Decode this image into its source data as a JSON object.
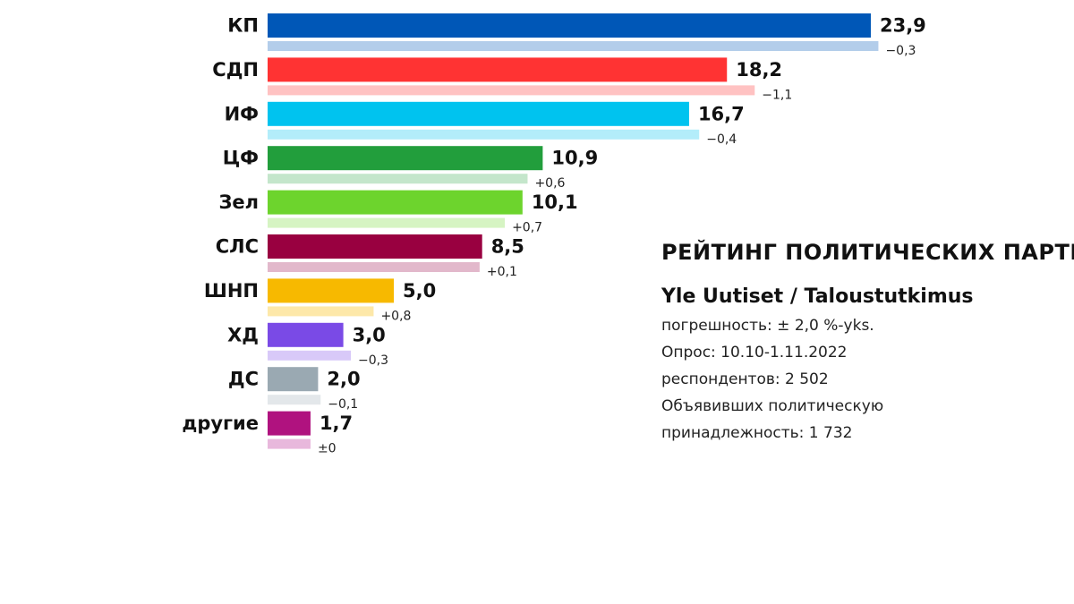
{
  "info": {
    "title": "РЕЙТИНГ ПОЛИТИЧЕСКИХ ПАРТИЙ",
    "source": "Yle Uutiset / Taloustutkimus",
    "margin_of_error": "погрешность: ± 2,0 %-yks.",
    "survey_period": "Опрос: 10.10-1.11.2022",
    "respondents": "респондентов: 2 502",
    "declared_line1": "Объявивших политическую",
    "declared_line2": "принадлежность: 1 732"
  },
  "chart_data": {
    "type": "bar",
    "orientation": "horizontal",
    "categories": [
      "КП",
      "СДП",
      "ИФ",
      "ЦФ",
      "Зел",
      "СЛС",
      "ШНП",
      "ХД",
      "ДС",
      "другие"
    ],
    "series": [
      {
        "values": [
          23.9,
          18.2,
          16.7,
          10.9,
          10.1,
          8.5,
          5.0,
          3.0,
          2.0,
          1.7
        ],
        "value_labels": [
          "23,9",
          "18,2",
          "16,7",
          "10,9",
          "10,1",
          "8,5",
          "5,0",
          "3,0",
          "2,0",
          "1,7"
        ]
      },
      {
        "values": [
          24.2,
          19.3,
          17.1,
          10.3,
          9.4,
          8.4,
          4.2,
          3.3,
          2.1,
          1.7
        ]
      }
    ],
    "changes": [
      -0.3,
      -1.1,
      -0.4,
      0.6,
      0.7,
      0.1,
      0.8,
      -0.3,
      -0.1,
      0
    ],
    "change_labels": [
      "−0,3",
      "−1,1",
      "−0,4",
      "+0,6",
      "+0,7",
      "+0,1",
      "+0,8",
      "−0,3",
      "−0,1",
      "±0"
    ],
    "colors": [
      "#0057b7",
      "#ff3333",
      "#00c3ef",
      "#229e3c",
      "#6dd42d",
      "#990040",
      "#f7b900",
      "#7a4ae6",
      "#9aa9b2",
      "#b0127f"
    ],
    "light_colors": [
      "#b3cdea",
      "#ffc2c2",
      "#b3edfa",
      "#c4e6cb",
      "#d6f4c3",
      "#e2b8cb",
      "#fde8a9",
      "#d8c9f8",
      "#e3e7ea",
      "#e8b8dc"
    ]
  }
}
